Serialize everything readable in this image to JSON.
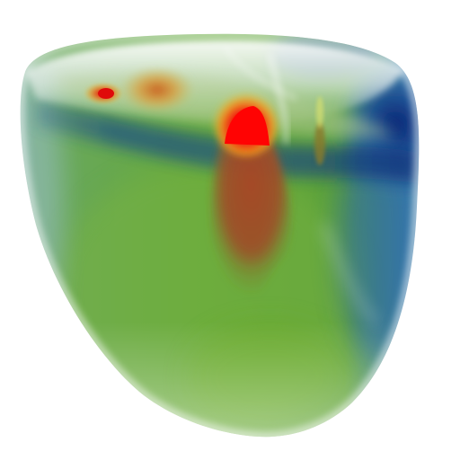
{
  "scene": {
    "subject": "volume-rendered-heart-ventricle",
    "background_color": "#ffffff",
    "colormap": {
      "low": "#0b1f7a",
      "mid_low": "#2b6fb0",
      "mid": "#5aa832",
      "mid_high": "#c8a02a",
      "high": "#e01010"
    },
    "regions": [
      {
        "name": "hot-spot-rim-center",
        "intensity": "high"
      },
      {
        "name": "hot-spot-rim-left",
        "intensity": "high"
      },
      {
        "name": "warm-plume-septum",
        "intensity": "mid_high"
      },
      {
        "name": "cold-region-right-rim",
        "intensity": "low"
      },
      {
        "name": "body-green-field",
        "intensity": "mid"
      }
    ]
  }
}
